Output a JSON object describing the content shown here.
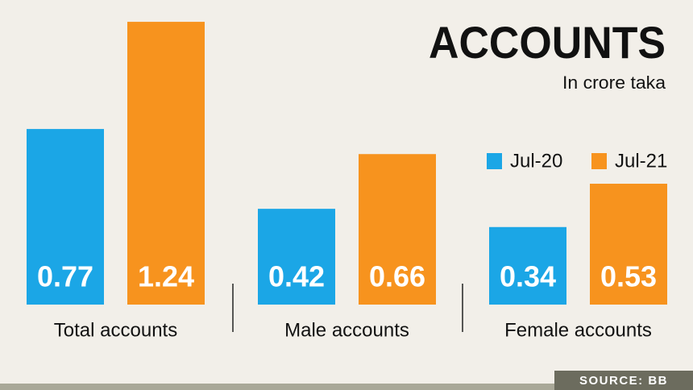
{
  "chart_data": {
    "type": "bar",
    "title": "ACCOUNTS",
    "subtitle": "In crore taka",
    "categories": [
      "Total accounts",
      "Male accounts",
      "Female accounts"
    ],
    "series": [
      {
        "name": "Jul-20",
        "color": "#1ba6e6",
        "values": [
          0.77,
          0.42,
          0.34
        ]
      },
      {
        "name": "Jul-21",
        "color": "#f7931e",
        "values": [
          1.24,
          0.66,
          0.53
        ]
      }
    ],
    "legend": "right",
    "source": "SOURCE: BB"
  }
}
